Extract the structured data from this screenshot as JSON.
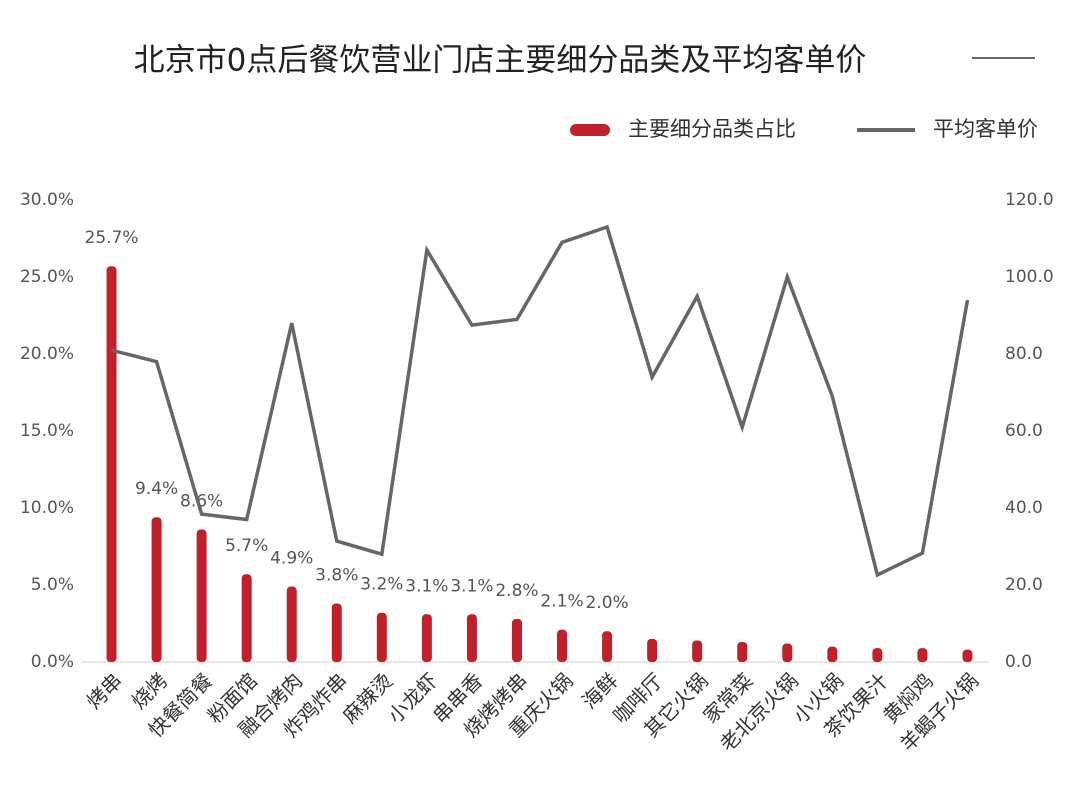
{
  "chart_data": {
    "type": "bar-line",
    "title": "北京市0点后餐饮营业门店主要细分品类及平均客单价",
    "categories": [
      "烤串",
      "烧烤",
      "快餐简餐",
      "粉面馆",
      "融合烤肉",
      "炸鸡炸串",
      "麻辣烫",
      "小龙虾",
      "串串香",
      "烧烤烤串",
      "重庆火锅",
      "海鲜",
      "咖啡厅",
      "其它火锅",
      "家常菜",
      "老北京火锅",
      "小火锅",
      "茶饮果汁",
      "黄焖鸡",
      "羊蝎子火锅"
    ],
    "series": [
      {
        "name": "主要细分品类占比",
        "type": "bar",
        "color": "#c0202a",
        "values": [
          25.7,
          9.4,
          8.6,
          5.7,
          4.9,
          3.8,
          3.2,
          3.1,
          3.1,
          2.8,
          2.1,
          2.0,
          1.5,
          1.4,
          1.3,
          1.2,
          1.0,
          0.9,
          0.9,
          0.8
        ],
        "value_labels": [
          "25.7%",
          "9.4%",
          "8.6%",
          "5.7%",
          "4.9%",
          "3.8%",
          "3.2%",
          "3.1%",
          "3.1%",
          "2.8%",
          "2.1%",
          "2.0%",
          null,
          null,
          null,
          null,
          null,
          null,
          null,
          null
        ]
      },
      {
        "name": "平均客单价",
        "type": "line",
        "axis": "y2",
        "color": "#666666",
        "values": [
          81,
          78,
          38.4,
          37,
          88,
          31.4,
          28,
          107,
          87.5,
          89,
          109,
          113,
          74,
          95,
          61,
          100,
          69,
          22.6,
          28.3,
          94
        ]
      }
    ],
    "ylim": [
      0,
      30
    ],
    "yticks": [
      {
        "value": 0,
        "label": "0.0%"
      },
      {
        "value": 5,
        "label": "5.0%"
      },
      {
        "value": 10,
        "label": "10.0%"
      },
      {
        "value": 15,
        "label": "15.0%"
      },
      {
        "value": 20,
        "label": "20.0%"
      },
      {
        "value": 25,
        "label": "25.0%"
      },
      {
        "value": 30,
        "label": "30.0%"
      }
    ],
    "y2lim": [
      0,
      120
    ],
    "y2ticks": [
      {
        "value": 0,
        "label": "0.0"
      },
      {
        "value": 20,
        "label": "20.0"
      },
      {
        "value": 40,
        "label": "40.0"
      },
      {
        "value": 60,
        "label": "60.0"
      },
      {
        "value": 80,
        "label": "80.0"
      },
      {
        "value": 100,
        "label": "100.0"
      },
      {
        "value": 120,
        "label": "120.0"
      }
    ],
    "legend": "top-right"
  }
}
